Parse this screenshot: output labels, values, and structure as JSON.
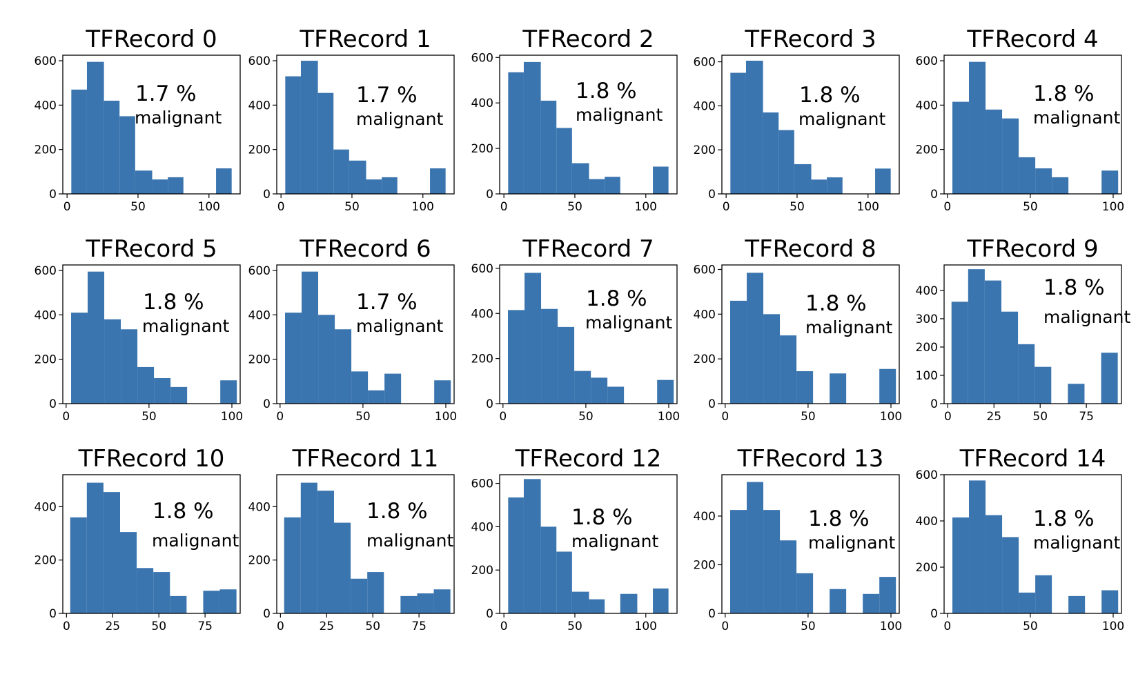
{
  "figure": {
    "bar_color": "#3b75af",
    "background": "#ffffff"
  },
  "chart_data": [
    {
      "type": "bar",
      "title": "TFRecord 0",
      "annotation": {
        "percent": "1.7 %",
        "label": "malignant"
      },
      "bins": [
        [
          3,
          14,
          470
        ],
        [
          14,
          26,
          595
        ],
        [
          26,
          37,
          420
        ],
        [
          37,
          48,
          350
        ],
        [
          48,
          60,
          105
        ],
        [
          60,
          71,
          65
        ],
        [
          71,
          82,
          75
        ],
        [
          82,
          94,
          0
        ],
        [
          94,
          105,
          0
        ],
        [
          105,
          116,
          115
        ]
      ],
      "xlim": [
        -3,
        122
      ],
      "ylim": [
        0,
        625
      ],
      "xticks": [
        0,
        50,
        100
      ],
      "yticks": [
        0,
        200,
        400,
        600
      ]
    },
    {
      "type": "bar",
      "title": "TFRecord 1",
      "annotation": {
        "percent": "1.7 %",
        "label": "malignant"
      },
      "bins": [
        [
          3,
          14,
          530
        ],
        [
          14,
          26,
          600
        ],
        [
          26,
          37,
          455
        ],
        [
          37,
          48,
          200
        ],
        [
          48,
          60,
          150
        ],
        [
          60,
          71,
          65
        ],
        [
          71,
          82,
          75
        ],
        [
          82,
          94,
          0
        ],
        [
          94,
          105,
          0
        ],
        [
          105,
          116,
          115
        ]
      ],
      "xlim": [
        -3,
        122
      ],
      "ylim": [
        0,
        625
      ],
      "xticks": [
        0,
        50,
        100
      ],
      "yticks": [
        0,
        200,
        400,
        600
      ]
    },
    {
      "type": "bar",
      "title": "TFRecord 2",
      "annotation": {
        "percent": "1.8 %",
        "label": "malignant"
      },
      "bins": [
        [
          3,
          14,
          535
        ],
        [
          14,
          26,
          580
        ],
        [
          26,
          37,
          410
        ],
        [
          37,
          48,
          290
        ],
        [
          48,
          60,
          135
        ],
        [
          60,
          71,
          65
        ],
        [
          71,
          82,
          75
        ],
        [
          82,
          94,
          0
        ],
        [
          94,
          105,
          0
        ],
        [
          105,
          116,
          120
        ]
      ],
      "xlim": [
        -3,
        122
      ],
      "ylim": [
        0,
        610
      ],
      "xticks": [
        0,
        50,
        100
      ],
      "yticks": [
        0,
        200,
        400,
        600
      ]
    },
    {
      "type": "bar",
      "title": "TFRecord 3",
      "annotation": {
        "percent": "1.8 %",
        "label": "malignant"
      },
      "bins": [
        [
          3,
          14,
          550
        ],
        [
          14,
          26,
          605
        ],
        [
          26,
          37,
          370
        ],
        [
          37,
          48,
          290
        ],
        [
          48,
          60,
          135
        ],
        [
          60,
          71,
          65
        ],
        [
          71,
          82,
          75
        ],
        [
          82,
          94,
          0
        ],
        [
          94,
          105,
          0
        ],
        [
          105,
          116,
          115
        ]
      ],
      "xlim": [
        -3,
        122
      ],
      "ylim": [
        0,
        630
      ],
      "xticks": [
        0,
        50,
        100
      ],
      "yticks": [
        0,
        200,
        400,
        600
      ]
    },
    {
      "type": "bar",
      "title": "TFRecord 4",
      "annotation": {
        "percent": "1.8 %",
        "label": "malignant"
      },
      "bins": [
        [
          3,
          13,
          415
        ],
        [
          13,
          23,
          595
        ],
        [
          23,
          33,
          380
        ],
        [
          33,
          43,
          340
        ],
        [
          43,
          53,
          165
        ],
        [
          53,
          63,
          115
        ],
        [
          63,
          73,
          75
        ],
        [
          73,
          83,
          0
        ],
        [
          83,
          93,
          0
        ],
        [
          93,
          103,
          105
        ]
      ],
      "xlim": [
        -2,
        105
      ],
      "ylim": [
        0,
        625
      ],
      "xticks": [
        0,
        50,
        100
      ],
      "yticks": [
        0,
        200,
        400,
        600
      ]
    },
    {
      "type": "bar",
      "title": "TFRecord 5",
      "annotation": {
        "percent": "1.8 %",
        "label": "malignant"
      },
      "bins": [
        [
          3,
          13,
          410
        ],
        [
          13,
          23,
          595
        ],
        [
          23,
          33,
          380
        ],
        [
          33,
          43,
          335
        ],
        [
          43,
          53,
          165
        ],
        [
          53,
          63,
          115
        ],
        [
          63,
          73,
          75
        ],
        [
          73,
          83,
          0
        ],
        [
          83,
          93,
          0
        ],
        [
          93,
          103,
          105
        ]
      ],
      "xlim": [
        -2,
        105
      ],
      "ylim": [
        0,
        625
      ],
      "xticks": [
        0,
        50,
        100
      ],
      "yticks": [
        0,
        200,
        400,
        600
      ]
    },
    {
      "type": "bar",
      "title": "TFRecord 6",
      "annotation": {
        "percent": "1.7 %",
        "label": "malignant"
      },
      "bins": [
        [
          3,
          13,
          410
        ],
        [
          13,
          23,
          595
        ],
        [
          23,
          33,
          400
        ],
        [
          33,
          43,
          335
        ],
        [
          43,
          53,
          145
        ],
        [
          53,
          63,
          60
        ],
        [
          63,
          73,
          135
        ],
        [
          73,
          83,
          0
        ],
        [
          83,
          93,
          0
        ],
        [
          93,
          103,
          105
        ]
      ],
      "xlim": [
        -2,
        105
      ],
      "ylim": [
        0,
        625
      ],
      "xticks": [
        0,
        50,
        100
      ],
      "yticks": [
        0,
        200,
        400,
        600
      ]
    },
    {
      "type": "bar",
      "title": "TFRecord 7",
      "annotation": {
        "percent": "1.8 %",
        "label": "malignant"
      },
      "bins": [
        [
          3,
          13,
          415
        ],
        [
          13,
          23,
          580
        ],
        [
          23,
          33,
          420
        ],
        [
          33,
          43,
          340
        ],
        [
          43,
          53,
          145
        ],
        [
          53,
          63,
          115
        ],
        [
          63,
          73,
          75
        ],
        [
          73,
          83,
          0
        ],
        [
          83,
          93,
          0
        ],
        [
          93,
          103,
          105
        ]
      ],
      "xlim": [
        -2,
        105
      ],
      "ylim": [
        0,
        615
      ],
      "xticks": [
        0,
        50,
        100
      ],
      "yticks": [
        0,
        200,
        400,
        600
      ]
    },
    {
      "type": "bar",
      "title": "TFRecord 8",
      "annotation": {
        "percent": "1.8 %",
        "label": "malignant"
      },
      "bins": [
        [
          3,
          13,
          460
        ],
        [
          13,
          23,
          585
        ],
        [
          23,
          33,
          400
        ],
        [
          33,
          43,
          305
        ],
        [
          43,
          53,
          145
        ],
        [
          53,
          63,
          0
        ],
        [
          63,
          73,
          135
        ],
        [
          73,
          83,
          0
        ],
        [
          83,
          93,
          0
        ],
        [
          93,
          103,
          155
        ]
      ],
      "xlim": [
        -2,
        105
      ],
      "ylim": [
        0,
        620
      ],
      "xticks": [
        0,
        50,
        100
      ],
      "yticks": [
        0,
        200,
        400,
        600
      ]
    },
    {
      "type": "bar",
      "title": "TFRecord 9",
      "annotation": {
        "percent": "1.8 %",
        "label": "malignant"
      },
      "bins": [
        [
          2,
          11,
          360
        ],
        [
          11,
          20,
          475
        ],
        [
          20,
          29,
          435
        ],
        [
          29,
          38,
          325
        ],
        [
          38,
          47,
          210
        ],
        [
          47,
          56,
          130
        ],
        [
          56,
          65,
          0
        ],
        [
          65,
          74,
          70
        ],
        [
          74,
          83,
          0
        ],
        [
          83,
          92,
          180
        ]
      ],
      "xlim": [
        -2,
        94
      ],
      "ylim": [
        0,
        490
      ],
      "xticks": [
        0,
        25,
        50,
        75
      ],
      "yticks": [
        0,
        100,
        200,
        300,
        400
      ]
    },
    {
      "type": "bar",
      "title": "TFRecord 10",
      "annotation": {
        "percent": "1.8 %",
        "label": "malignant"
      },
      "bins": [
        [
          2,
          11,
          360
        ],
        [
          11,
          20,
          490
        ],
        [
          20,
          29,
          455
        ],
        [
          29,
          38,
          305
        ],
        [
          38,
          47,
          170
        ],
        [
          47,
          56,
          155
        ],
        [
          56,
          65,
          65
        ],
        [
          65,
          74,
          0
        ],
        [
          74,
          83,
          85
        ],
        [
          83,
          92,
          90
        ]
      ],
      "xlim": [
        -2,
        94
      ],
      "ylim": [
        0,
        520
      ],
      "xticks": [
        0,
        25,
        50,
        75
      ],
      "yticks": [
        0,
        200,
        400
      ]
    },
    {
      "type": "bar",
      "title": "TFRecord 11",
      "annotation": {
        "percent": "1.8 %",
        "label": "malignant"
      },
      "bins": [
        [
          2,
          11,
          360
        ],
        [
          11,
          20,
          490
        ],
        [
          20,
          29,
          460
        ],
        [
          29,
          38,
          340
        ],
        [
          38,
          47,
          130
        ],
        [
          47,
          56,
          155
        ],
        [
          56,
          65,
          0
        ],
        [
          65,
          74,
          65
        ],
        [
          74,
          83,
          75
        ],
        [
          83,
          92,
          90
        ]
      ],
      "xlim": [
        -2,
        94
      ],
      "ylim": [
        0,
        520
      ],
      "xticks": [
        0,
        25,
        50,
        75
      ],
      "yticks": [
        0,
        200,
        400
      ]
    },
    {
      "type": "bar",
      "title": "TFRecord 12",
      "annotation": {
        "percent": "1.8 %",
        "label": "malignant"
      },
      "bins": [
        [
          3,
          14,
          535
        ],
        [
          14,
          26,
          620
        ],
        [
          26,
          37,
          400
        ],
        [
          37,
          48,
          285
        ],
        [
          48,
          60,
          100
        ],
        [
          60,
          71,
          65
        ],
        [
          71,
          82,
          0
        ],
        [
          82,
          94,
          90
        ],
        [
          94,
          105,
          0
        ],
        [
          105,
          116,
          115
        ]
      ],
      "xlim": [
        -3,
        122
      ],
      "ylim": [
        0,
        640
      ],
      "xticks": [
        0,
        50,
        100
      ],
      "yticks": [
        0,
        200,
        400,
        600
      ]
    },
    {
      "type": "bar",
      "title": "TFRecord 13",
      "annotation": {
        "percent": "1.8 %",
        "label": "malignant"
      },
      "bins": [
        [
          3,
          13,
          425
        ],
        [
          13,
          23,
          540
        ],
        [
          23,
          33,
          425
        ],
        [
          33,
          43,
          300
        ],
        [
          43,
          53,
          165
        ],
        [
          53,
          63,
          0
        ],
        [
          63,
          73,
          100
        ],
        [
          73,
          83,
          0
        ],
        [
          83,
          93,
          80
        ],
        [
          93,
          103,
          150
        ]
      ],
      "xlim": [
        -2,
        105
      ],
      "ylim": [
        0,
        570
      ],
      "xticks": [
        0,
        50,
        100
      ],
      "yticks": [
        0,
        200,
        400
      ]
    },
    {
      "type": "bar",
      "title": "TFRecord 14",
      "annotation": {
        "percent": "1.8 %",
        "label": "malignant"
      },
      "bins": [
        [
          3,
          13,
          415
        ],
        [
          13,
          23,
          575
        ],
        [
          23,
          33,
          425
        ],
        [
          33,
          43,
          330
        ],
        [
          43,
          53,
          90
        ],
        [
          53,
          63,
          165
        ],
        [
          63,
          73,
          0
        ],
        [
          73,
          83,
          75
        ],
        [
          83,
          93,
          0
        ],
        [
          93,
          103,
          100
        ]
      ],
      "xlim": [
        -2,
        105
      ],
      "ylim": [
        0,
        600
      ],
      "xticks": [
        0,
        50,
        100
      ],
      "yticks": [
        0,
        200,
        400,
        600
      ]
    }
  ]
}
